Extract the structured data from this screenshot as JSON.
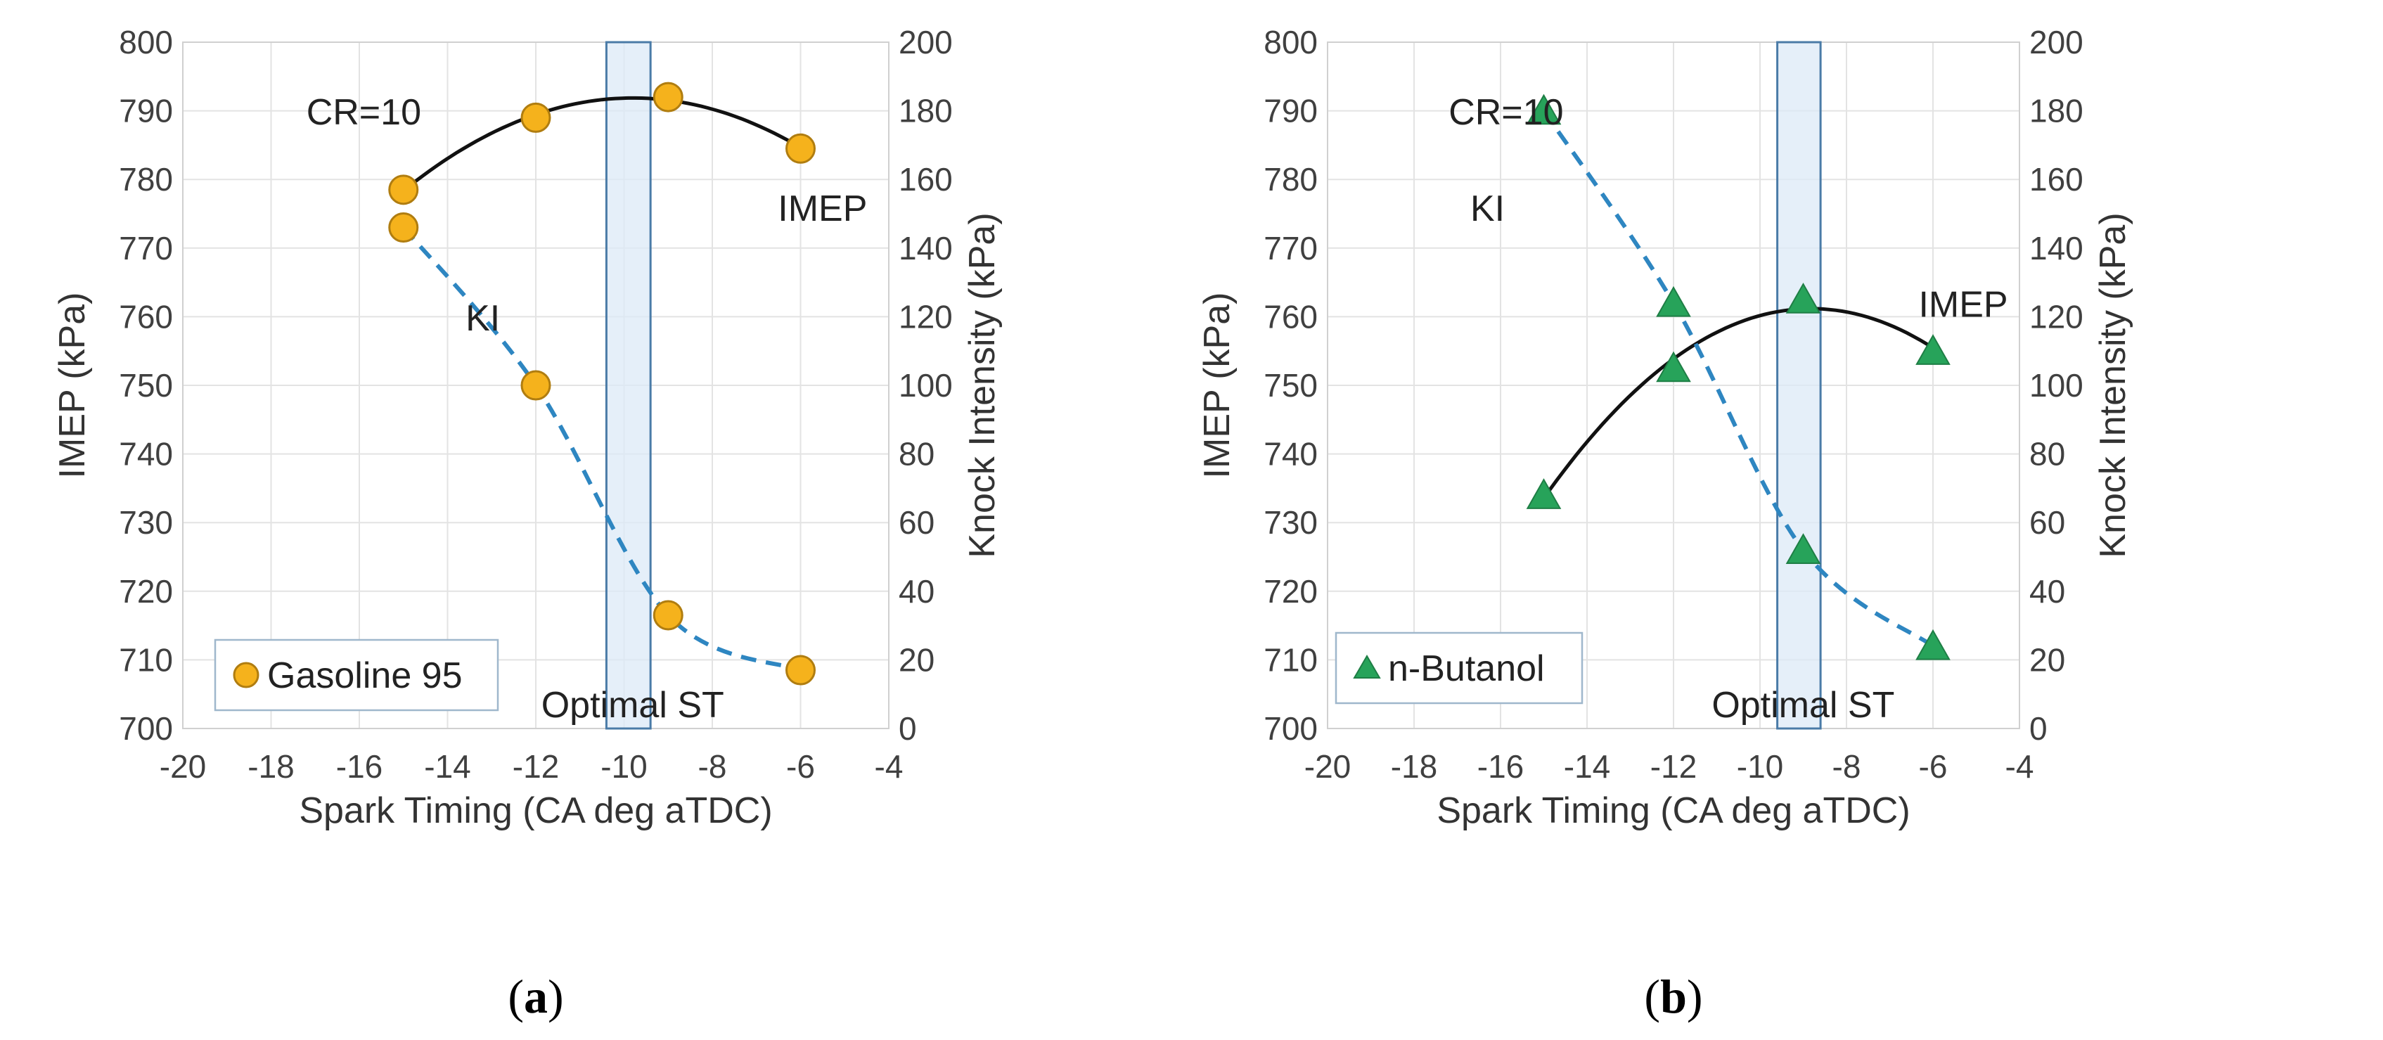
{
  "chart_data": [
    {
      "type": "scatter",
      "caption_letter": "a",
      "xlabel": "Spark Timing (CA deg aTDC)",
      "ylabel": "IMEP (kPa)",
      "y2label": "Knock Intensity (kPa)",
      "xlim": [
        -20,
        -4
      ],
      "xticks": [
        -20,
        -18,
        -16,
        -14,
        -12,
        -10,
        -8,
        -6,
        -4
      ],
      "ylim": [
        700,
        800
      ],
      "yticks": [
        700,
        710,
        720,
        730,
        740,
        750,
        760,
        770,
        780,
        790,
        800
      ],
      "y2lim": [
        0,
        200
      ],
      "y2ticks": [
        0,
        20,
        40,
        60,
        80,
        100,
        120,
        140,
        160,
        180,
        200
      ],
      "grid": true,
      "legend": {
        "label": "Gasoline 95",
        "placement": "bottom-left"
      },
      "marker": {
        "shape": "circle",
        "color": "#f5b21c",
        "edge": "#b07d10"
      },
      "series": [
        {
          "axis": "left",
          "trend": "quadratic",
          "line_style": "solid",
          "line_color": "#111111",
          "x": [
            -15,
            -12,
            -9,
            -6
          ],
          "y": [
            778.5,
            789,
            792,
            784.5
          ]
        },
        {
          "axis": "right",
          "trend": "smooth",
          "line_style": "dashed",
          "line_color": "#2e86c1",
          "x": [
            -15,
            -12,
            -9,
            -6
          ],
          "y": [
            146,
            100,
            33,
            17
          ]
        }
      ],
      "band": {
        "label": "Optimal ST",
        "x": [
          -10.4,
          -9.4
        ],
        "color": "#dce9f7",
        "edge": "#4a7ba7"
      },
      "annotations": {
        "cr": "CR=10",
        "imep": "IMEP",
        "ki": "KI"
      }
    },
    {
      "type": "scatter",
      "caption_letter": "b",
      "xlabel": "Spark Timing (CA deg aTDC)",
      "ylabel": "IMEP (kPa)",
      "y2label": "Knock Intensity (kPa)",
      "xlim": [
        -20,
        -4
      ],
      "xticks": [
        -20,
        -18,
        -16,
        -14,
        -12,
        -10,
        -8,
        -6,
        -4
      ],
      "ylim": [
        700,
        800
      ],
      "yticks": [
        700,
        710,
        720,
        730,
        740,
        750,
        760,
        770,
        780,
        790,
        800
      ],
      "y2lim": [
        0,
        200
      ],
      "y2ticks": [
        0,
        20,
        40,
        60,
        80,
        100,
        120,
        140,
        160,
        180,
        200
      ],
      "grid": true,
      "legend": {
        "label": "n-Butanol",
        "placement": "bottom-left"
      },
      "marker": {
        "shape": "triangle",
        "color": "#27a35a",
        "edge": "#1e7e45"
      },
      "series": [
        {
          "axis": "left",
          "trend": "quadratic",
          "line_style": "solid",
          "line_color": "#111111",
          "x": [
            -15,
            -12,
            -9,
            -6
          ],
          "y": [
            734,
            752.5,
            762.5,
            755
          ]
        },
        {
          "axis": "right",
          "trend": "smooth",
          "line_style": "dashed",
          "line_color": "#2e86c1",
          "x": [
            -15,
            -12,
            -9,
            -6
          ],
          "y": [
            180,
            124,
            52,
            24
          ]
        }
      ],
      "band": {
        "label": "Optimal ST",
        "x": [
          -9.6,
          -8.6
        ],
        "color": "#dce9f7",
        "edge": "#4a7ba7"
      },
      "annotations": {
        "cr": "CR=10",
        "imep": "IMEP",
        "ki": "KI"
      }
    }
  ]
}
